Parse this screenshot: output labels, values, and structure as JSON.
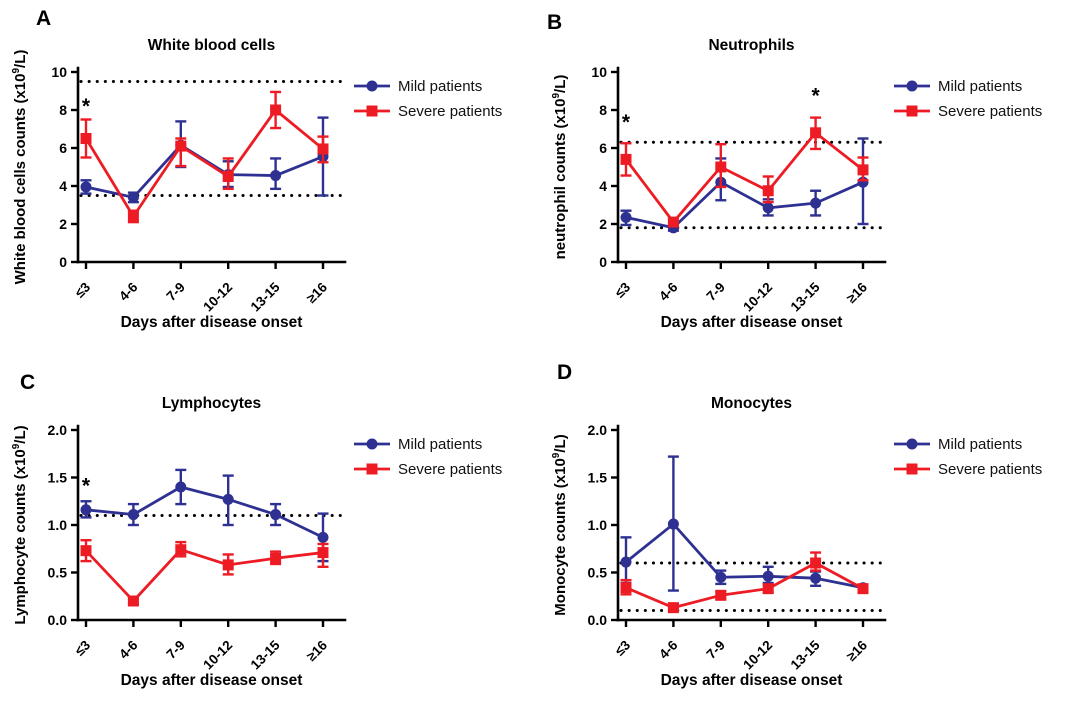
{
  "legend": {
    "items": [
      {
        "label": "Mild patients",
        "color": "#2e3192",
        "marker": "circle"
      },
      {
        "label": "Severe patients",
        "color": "#ed1c24",
        "marker": "square"
      }
    ]
  },
  "colors": {
    "mild": "#2e3192",
    "severe": "#ed1c24",
    "axis": "#000000",
    "background": "#ffffff"
  },
  "chart_data": [
    {
      "panel": "A",
      "type": "line",
      "error_bars": true,
      "grid": false,
      "legend_position": "right-top",
      "title": "White blood cells",
      "xlabel": "Days after disease onset",
      "ylabel_pre": "White blood cells counts (x10",
      "ylabel_sup": "9",
      "ylabel_post": "/L)",
      "ylim": [
        0,
        10
      ],
      "yticks": [
        {
          "value": 0,
          "label": "0"
        },
        {
          "value": 2,
          "label": "2"
        },
        {
          "value": 4,
          "label": "4"
        },
        {
          "value": 6,
          "label": "6"
        },
        {
          "value": 8,
          "label": "8"
        },
        {
          "value": 10,
          "label": "10"
        }
      ],
      "categories": [
        "≤3",
        "4-6",
        "7-9",
        "10-12",
        "13-15",
        "≥16"
      ],
      "ref_lines": [
        9.5,
        3.5
      ],
      "series": [
        {
          "name": "Mild patients",
          "color": "#2e3192",
          "marker": "circle",
          "values": [
            3.95,
            3.4,
            6.15,
            4.6,
            4.55,
            5.55
          ],
          "err_low": [
            3.6,
            3.15,
            5.0,
            3.95,
            3.85,
            3.5
          ],
          "err_high": [
            4.3,
            3.65,
            7.4,
            5.3,
            5.45,
            7.6
          ]
        },
        {
          "name": "Severe patients",
          "color": "#ed1c24",
          "marker": "square",
          "values": [
            6.5,
            2.4,
            6.1,
            4.5,
            8.0,
            5.95
          ],
          "err_low": [
            5.5,
            2.1,
            5.05,
            3.85,
            7.05,
            5.25
          ],
          "err_high": [
            7.5,
            2.7,
            6.5,
            5.45,
            8.95,
            6.6
          ]
        }
      ],
      "annotations": [
        {
          "category_index": 0,
          "y": 7.85,
          "text": "*"
        }
      ]
    },
    {
      "panel": "B",
      "type": "line",
      "error_bars": true,
      "grid": false,
      "legend_position": "right-top",
      "title": "Neutrophils",
      "xlabel": "Days after disease onset",
      "ylabel_pre": "neutrophil counts (x10",
      "ylabel_sup": "9",
      "ylabel_post": "/L)",
      "ylim": [
        0,
        10
      ],
      "yticks": [
        {
          "value": 0,
          "label": "0"
        },
        {
          "value": 2,
          "label": "2"
        },
        {
          "value": 4,
          "label": "4"
        },
        {
          "value": 6,
          "label": "6"
        },
        {
          "value": 8,
          "label": "8"
        },
        {
          "value": 10,
          "label": "10"
        }
      ],
      "categories": [
        "≤3",
        "4-6",
        "7-9",
        "10-12",
        "13-15",
        "≥16"
      ],
      "ref_lines": [
        6.3,
        1.8
      ],
      "series": [
        {
          "name": "Mild patients",
          "color": "#2e3192",
          "marker": "circle",
          "values": [
            2.35,
            1.8,
            4.2,
            2.85,
            3.1,
            4.2
          ],
          "err_low": [
            1.95,
            1.65,
            3.25,
            2.45,
            2.45,
            2.0
          ],
          "err_high": [
            2.7,
            1.95,
            5.45,
            3.3,
            3.75,
            6.5
          ]
        },
        {
          "name": "Severe patients",
          "color": "#ed1c24",
          "marker": "square",
          "values": [
            5.4,
            2.1,
            5.0,
            3.75,
            6.8,
            4.85
          ],
          "err_low": [
            4.55,
            1.9,
            3.95,
            3.15,
            5.95,
            4.3
          ],
          "err_high": [
            6.25,
            2.3,
            6.2,
            4.5,
            7.6,
            5.5
          ]
        }
      ],
      "annotations": [
        {
          "category_index": 0,
          "y": 7.0,
          "text": "*"
        },
        {
          "category_index": 4,
          "y": 8.4,
          "text": "*"
        }
      ]
    },
    {
      "panel": "C",
      "type": "line",
      "error_bars": true,
      "grid": false,
      "legend_position": "right-top",
      "title": "Lymphocytes",
      "xlabel": "Days after disease onset",
      "ylabel_pre": "Lymphocyte counts (x10",
      "ylabel_sup": "9",
      "ylabel_post": "/L)",
      "ylim": [
        0,
        2
      ],
      "yticks": [
        {
          "value": 0,
          "label": "0.0"
        },
        {
          "value": 0.5,
          "label": "0.5"
        },
        {
          "value": 1.0,
          "label": "1.0"
        },
        {
          "value": 1.5,
          "label": "1.5"
        },
        {
          "value": 2.0,
          "label": "2.0"
        }
      ],
      "categories": [
        "≤3",
        "4-6",
        "7-9",
        "10-12",
        "13-15",
        "≥16"
      ],
      "ref_lines": [
        1.1
      ],
      "series": [
        {
          "name": "Mild patients",
          "color": "#2e3192",
          "marker": "circle",
          "values": [
            1.16,
            1.11,
            1.4,
            1.27,
            1.11,
            0.87
          ],
          "err_low": [
            1.08,
            1.0,
            1.22,
            1.0,
            1.0,
            0.62
          ],
          "err_high": [
            1.25,
            1.22,
            1.58,
            1.52,
            1.22,
            1.12
          ]
        },
        {
          "name": "Severe patients",
          "color": "#ed1c24",
          "marker": "square",
          "values": [
            0.73,
            0.2,
            0.74,
            0.58,
            0.65,
            0.71
          ],
          "err_low": [
            0.62,
            0.17,
            0.67,
            0.48,
            0.59,
            0.56
          ],
          "err_high": [
            0.84,
            0.23,
            0.82,
            0.69,
            0.72,
            0.8
          ]
        }
      ],
      "annotations": [
        {
          "category_index": 0,
          "y": 1.34,
          "text": "*"
        }
      ]
    },
    {
      "panel": "D",
      "type": "line",
      "error_bars": true,
      "grid": false,
      "legend_position": "right-top",
      "title": "Monocytes",
      "xlabel": "Days after disease onset",
      "ylabel_pre": "Monocyte counts (x10",
      "ylabel_sup": "9",
      "ylabel_post": "/L)",
      "ylim": [
        0,
        2
      ],
      "yticks": [
        {
          "value": 0,
          "label": "0.0"
        },
        {
          "value": 0.5,
          "label": "0.5"
        },
        {
          "value": 1.0,
          "label": "1.0"
        },
        {
          "value": 1.5,
          "label": "1.5"
        },
        {
          "value": 2.0,
          "label": "2.0"
        }
      ],
      "categories": [
        "≤3",
        "4-6",
        "7-9",
        "10-12",
        "13-15",
        "≥16"
      ],
      "ref_lines": [
        0.6,
        0.1
      ],
      "series": [
        {
          "name": "Mild patients",
          "color": "#2e3192",
          "marker": "circle",
          "values": [
            0.61,
            1.01,
            0.45,
            0.46,
            0.44,
            0.34
          ],
          "err_low": [
            0.39,
            0.31,
            0.38,
            0.39,
            0.36,
            0.31
          ],
          "err_high": [
            0.87,
            1.72,
            0.52,
            0.56,
            0.51,
            0.37
          ]
        },
        {
          "name": "Severe patients",
          "color": "#ed1c24",
          "marker": "square",
          "values": [
            0.34,
            0.13,
            0.26,
            0.33,
            0.6,
            0.33
          ],
          "err_low": [
            0.27,
            0.1,
            0.22,
            0.29,
            0.52,
            0.29
          ],
          "err_high": [
            0.42,
            0.17,
            0.3,
            0.37,
            0.71,
            0.37
          ]
        }
      ],
      "annotations": []
    }
  ]
}
